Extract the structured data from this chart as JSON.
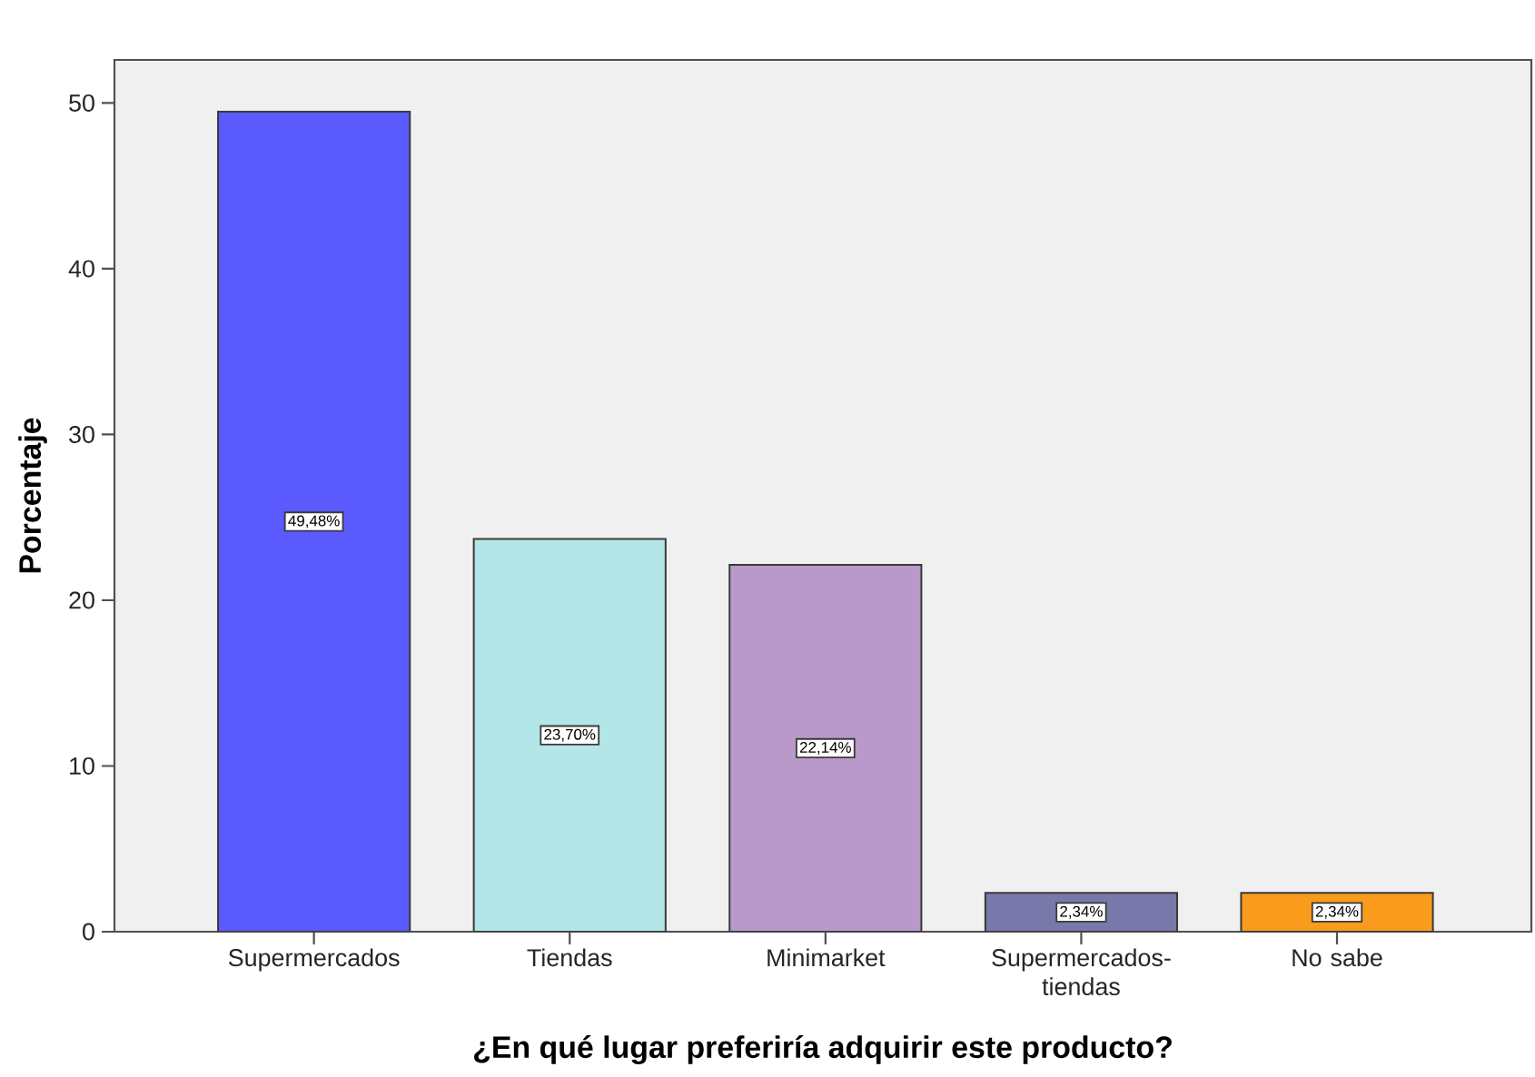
{
  "chart_data": {
    "type": "bar",
    "xlabel": "¿En qué lugar preferiría adquirir este producto?",
    "ylabel": "Porcentaje",
    "categories": [
      "Supermercados",
      "Tiendas",
      "Minimarket",
      "Supermercados-tiendas",
      "No sabe"
    ],
    "values": [
      49.48,
      23.7,
      22.14,
      2.34,
      2.34
    ],
    "colors": [
      "#5a5aff",
      "#b3e6e6",
      "#b899c9",
      "#7878aa",
      "#f99b1c"
    ],
    "value_labels": [
      "49,48%",
      "23,70%",
      "22,14%",
      "2,34%",
      "2,34%"
    ],
    "ylim": [
      0,
      52.6
    ],
    "yticks": [
      0,
      10,
      20,
      30,
      40,
      50
    ]
  }
}
